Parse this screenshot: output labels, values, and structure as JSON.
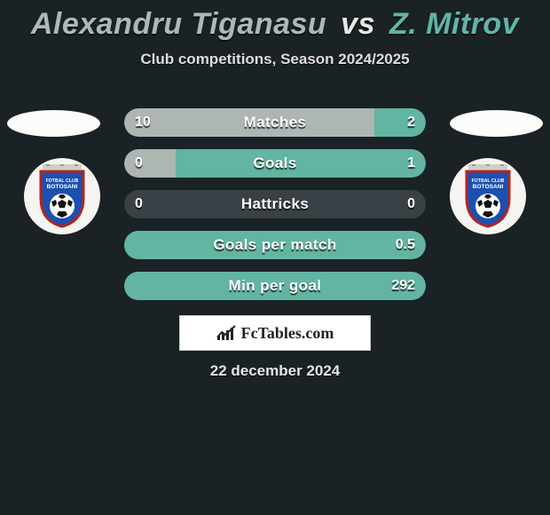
{
  "title": {
    "player1": "Alexandru Tiganasu",
    "vs": "vs",
    "player2": "Z. Mitrov"
  },
  "subtitle": "Club competitions, Season 2024/2025",
  "bars": {
    "color_p1": "#aeb6b4",
    "color_p2": "#62b5a2",
    "track_color": "#3a4146",
    "rows": [
      {
        "label": "Matches",
        "left": "10",
        "right": "2",
        "pct_left": 83,
        "pct_right": 17
      },
      {
        "label": "Goals",
        "left": "0",
        "right": "1",
        "pct_left": 17,
        "pct_right": 83
      },
      {
        "label": "Hattricks",
        "left": "0",
        "right": "0",
        "pct_left": 0,
        "pct_right": 0
      },
      {
        "label": "Goals per match",
        "left": "",
        "right": "0.5",
        "pct_left": 0,
        "pct_right": 100
      },
      {
        "label": "Min per goal",
        "left": "",
        "right": "292",
        "pct_left": 0,
        "pct_right": 100
      }
    ]
  },
  "club_badge": {
    "label_line1": "FOTBAL CLUB",
    "label_line2": "BOTOSANI",
    "shield_fill": "#1b4fb2",
    "shield_stroke": "#b2241d",
    "ball_white": "#ffffff",
    "ball_black": "#111111"
  },
  "logo_text": "FcTables.com",
  "date_text": "22 december 2024",
  "colors": {
    "background": "#1a2226",
    "ellipse": "#fcfcfa",
    "badge_bg": "#f5f4f0",
    "logo_bg": "#ffffff",
    "logo_border": "#d0d0d0",
    "text_main": "#dedede"
  }
}
